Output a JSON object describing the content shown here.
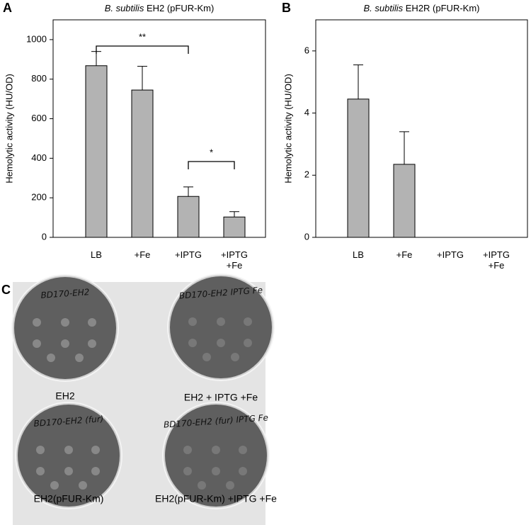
{
  "chart_data": [
    {
      "type": "bar",
      "panel_label": "A",
      "title": {
        "species": "B. subtilis",
        "strain": "EH2 (pFUR-Km)"
      },
      "y_label": "Hemolytic activity (HU/OD)",
      "categories": [
        "LB",
        "+Fe",
        "+IPTG",
        "+IPTG\n+Fe"
      ],
      "values": [
        868,
        745,
        207,
        103
      ],
      "errors": [
        72,
        120,
        48,
        27
      ],
      "color": "#b3b3b3",
      "ylim": [
        0,
        1100
      ],
      "yticks": [
        0,
        200,
        400,
        600,
        800,
        1000
      ],
      "annotations": [
        "**",
        "*"
      ]
    },
    {
      "type": "bar",
      "panel_label": "B",
      "title": {
        "species": "B. subtilis",
        "strain": "EH2R (pFUR-Km)"
      },
      "y_label": "Hemolytic activity (HU/OD)",
      "categories": [
        "LB",
        "+Fe",
        "+IPTG",
        "+IPTG\n+Fe"
      ],
      "values": [
        4.45,
        2.35,
        0,
        0
      ],
      "errors": [
        1.1,
        1.05,
        null,
        null
      ],
      "color": "#b3b3b3",
      "ylim": [
        0,
        7
      ],
      "yticks": [
        0,
        2,
        4,
        6
      ]
    }
  ],
  "panel_c": {
    "panel_label": "C",
    "plates": [
      {
        "handwriting": "BD170-EH2",
        "caption": "EH2"
      },
      {
        "handwriting": "BD170-EH2  IPTG Fe",
        "caption": "EH2 + IPTG +Fe"
      },
      {
        "handwriting": "BD170-EH2 (fur)",
        "caption": "EH2(pFUR-Km)"
      },
      {
        "handwriting": "BD170-EH2 (fur)  IPTG Fe",
        "caption": "EH2(pFUR-Km) +IPTG +Fe"
      }
    ]
  }
}
